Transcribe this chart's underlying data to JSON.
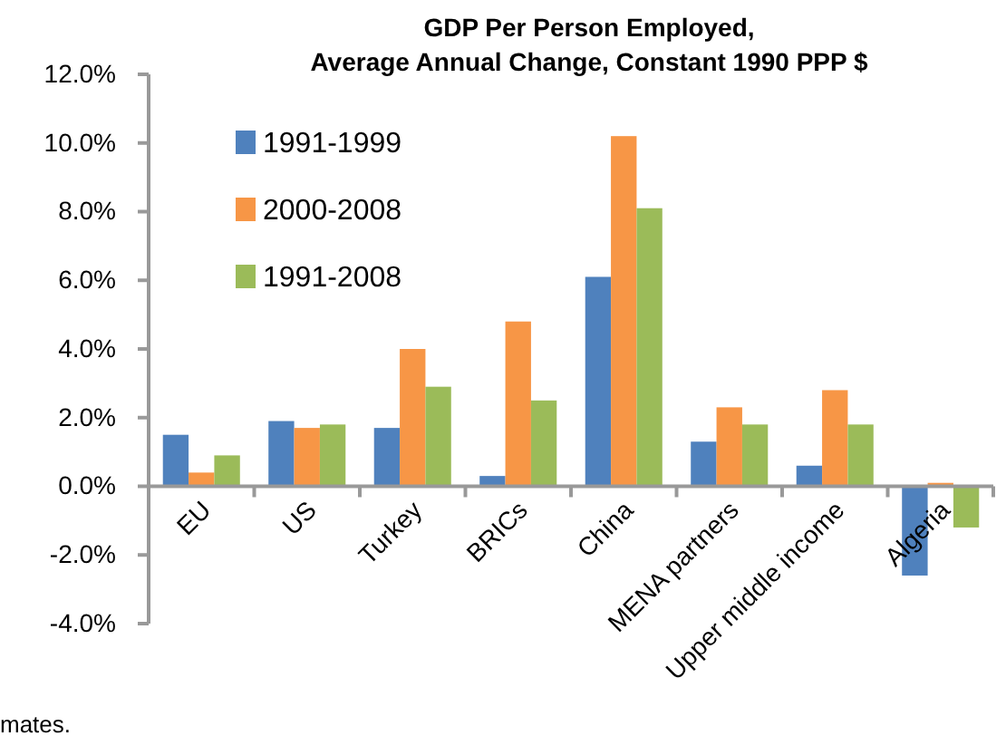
{
  "chart_data": {
    "type": "bar",
    "title": "GDP Per Person Employed,\nAverage Annual  Change, Constant 1990 PPP $",
    "categories": [
      "EU",
      "US",
      "Turkey",
      "BRICs",
      "China",
      "MENA partners",
      "Upper middle income",
      "Algeria"
    ],
    "series": [
      {
        "name": "1991-1999",
        "color": "#4f81bd",
        "values": [
          1.5,
          1.9,
          1.7,
          0.3,
          6.1,
          1.3,
          0.6,
          -2.6
        ]
      },
      {
        "name": "2000-2008",
        "color": "#f79646",
        "values": [
          0.4,
          1.7,
          4.0,
          4.8,
          10.2,
          2.3,
          2.8,
          0.1
        ]
      },
      {
        "name": "1991-2008",
        "color": "#9bbb59",
        "values": [
          0.9,
          1.8,
          2.9,
          2.5,
          8.1,
          1.8,
          1.8,
          -1.2
        ]
      }
    ],
    "ylim": [
      -4,
      12
    ],
    "yticks": [
      {
        "value": -4,
        "label": "-4.0%"
      },
      {
        "value": -2,
        "label": "-2.0%"
      },
      {
        "value": 0,
        "label": "0.0%"
      },
      {
        "value": 2,
        "label": "2.0%"
      },
      {
        "value": 4,
        "label": "4.0%"
      },
      {
        "value": 6,
        "label": "6.0%"
      },
      {
        "value": 8,
        "label": "8.0%"
      },
      {
        "value": 10,
        "label": "10.0%"
      },
      {
        "value": 12,
        "label": "12.0%"
      }
    ],
    "grid": false,
    "legend": "top left",
    "annotations": [
      "mates."
    ]
  }
}
